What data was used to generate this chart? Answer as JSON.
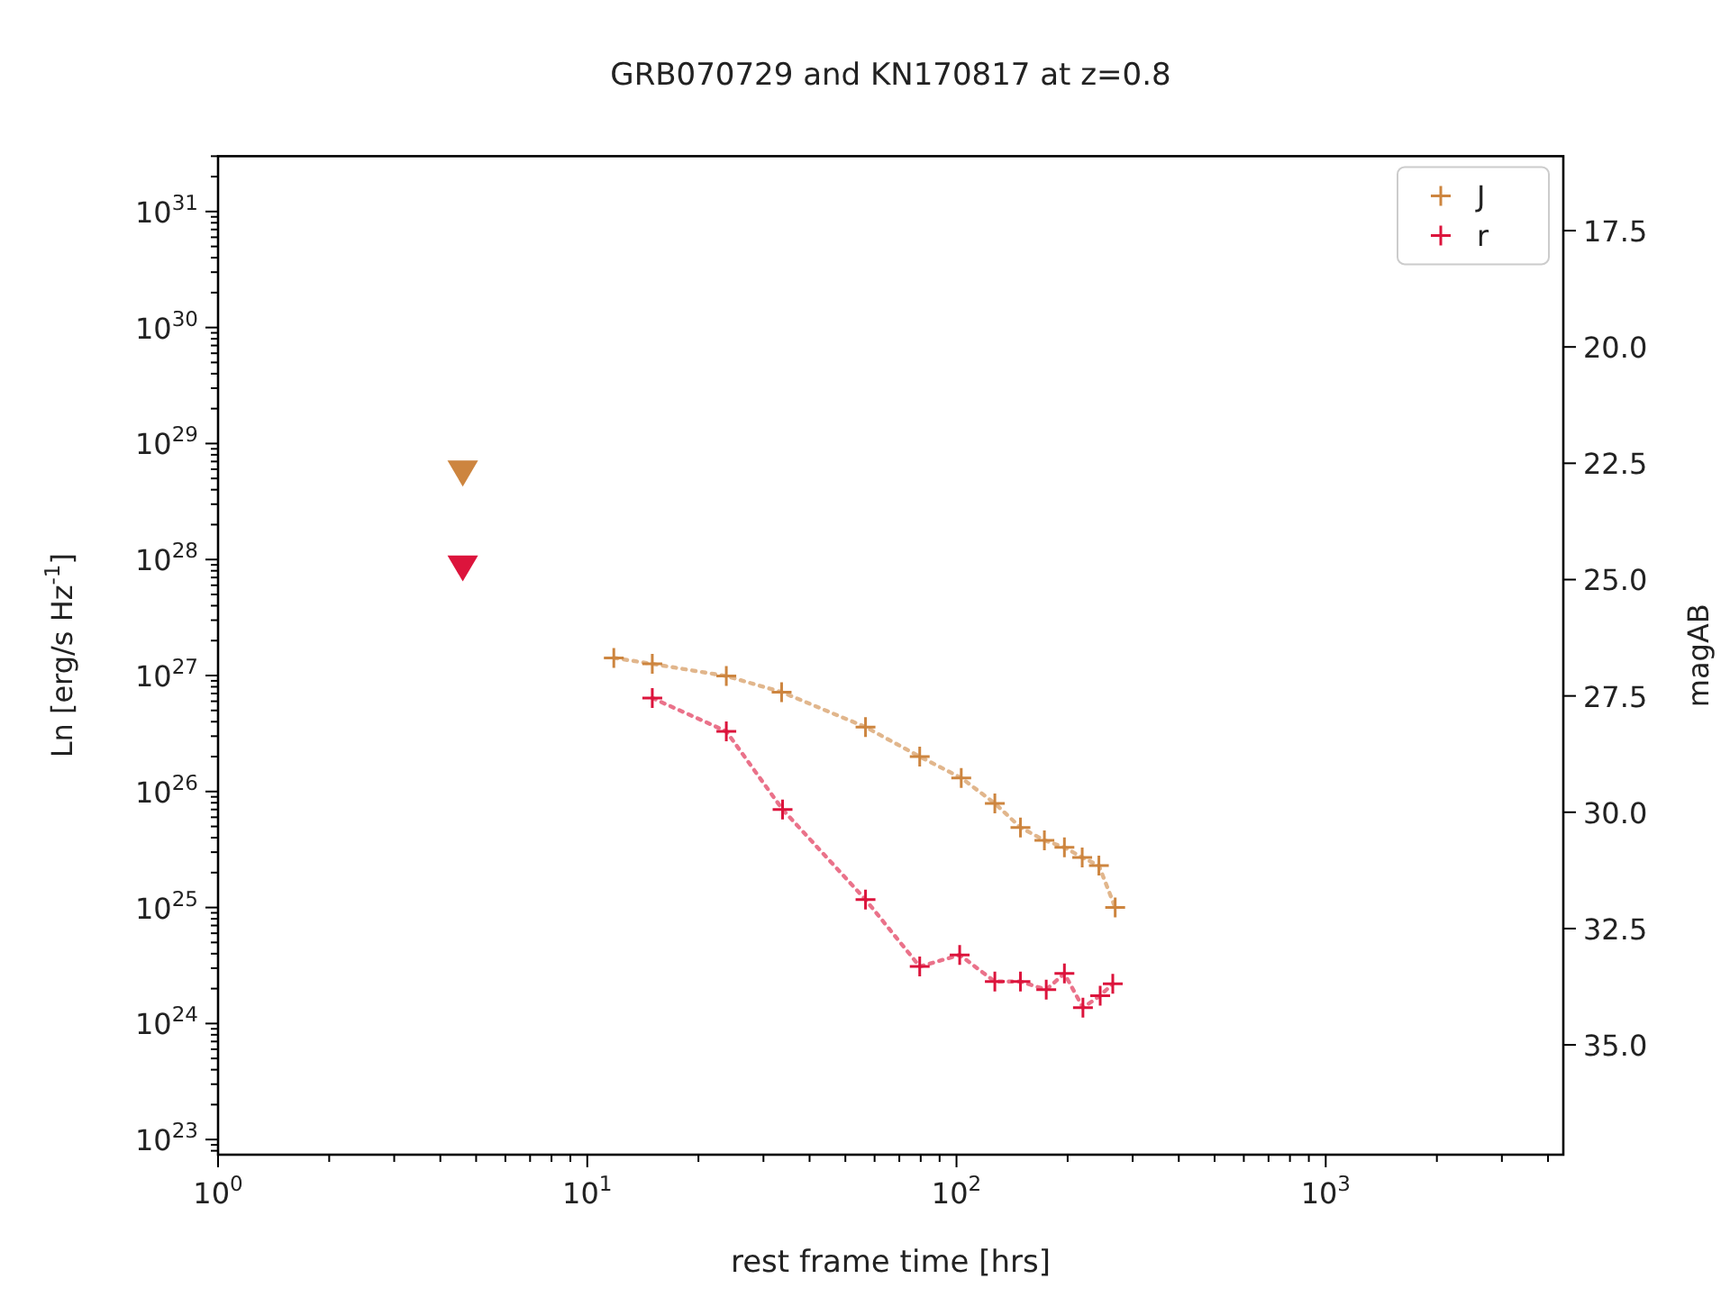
{
  "chart_data": {
    "type": "scatter",
    "title": "GRB070729 and KN170817 at z=0.8",
    "xlabel": "rest frame time [hrs]",
    "ylabel": "Ln [erg/s Hz$^{-1}$]",
    "y2label": "magAB",
    "log": "xy",
    "xlim": [
      1,
      4400
    ],
    "ylim": [
      7.4e+22,
      3e+31
    ],
    "y2lim": [
      37.36,
      15.9
    ],
    "xticks": [
      {
        "value": 1,
        "label": "10$^{0}$"
      },
      {
        "value": 10,
        "label": "10$^{1}$"
      },
      {
        "value": 100,
        "label": "10$^{2}$"
      },
      {
        "value": 1000,
        "label": "10$^{3}$"
      }
    ],
    "yticks": [
      {
        "value": 1e+23,
        "label": "10$^{23}$"
      },
      {
        "value": 1e+24,
        "label": "10$^{24}$"
      },
      {
        "value": 1e+25,
        "label": "10$^{25}$"
      },
      {
        "value": 1e+26,
        "label": "10$^{26}$"
      },
      {
        "value": 1e+27,
        "label": "10$^{27}$"
      },
      {
        "value": 1e+28,
        "label": "10$^{28}$"
      },
      {
        "value": 1e+29,
        "label": "10$^{29}$"
      },
      {
        "value": 1e+30,
        "label": "10$^{30}$"
      },
      {
        "value": 1e+31,
        "label": "10$^{31}$"
      }
    ],
    "y2ticks": [
      {
        "value": 17.5,
        "label": "17.5"
      },
      {
        "value": 20,
        "label": "20.0"
      },
      {
        "value": 22.5,
        "label": "22.5"
      },
      {
        "value": 25,
        "label": "25.0"
      },
      {
        "value": 27.5,
        "label": "27.5"
      },
      {
        "value": 30,
        "label": "30.0"
      },
      {
        "value": 32.5,
        "label": "32.5"
      },
      {
        "value": 35,
        "label": "35.0"
      }
    ],
    "legend": "top right",
    "series": [
      {
        "marker": "triangle",
        "color": "#cd853f",
        "x": [
          4.6
        ],
        "values": [
          5.6e+28
        ]
      },
      {
        "marker": "triangle",
        "color": "#dc143c",
        "x": [
          4.6
        ],
        "values": [
          8.5e+27
        ]
      },
      {
        "name": "J",
        "type": "line",
        "marker": "cross",
        "line_style": "dotted",
        "color": "#cd853f",
        "x": [
          11.8,
          15.0,
          23.8,
          33.6,
          56.7,
          79.5,
          103,
          127,
          149,
          173,
          196,
          219,
          243,
          269
        ],
        "values": [
          1.42e+27,
          1.26e+27,
          9.9e+26,
          7.2e+26,
          3.6e+26,
          2e+26,
          1.31e+26,
          7.9e+25,
          4.9e+25,
          3.8e+25,
          3.3e+25,
          2.7e+25,
          2.3e+25,
          1e+25
        ]
      },
      {
        "name": "r",
        "type": "line",
        "marker": "cross",
        "line_style": "dotted",
        "color": "#dc143c",
        "x": [
          15.0,
          23.8,
          33.8,
          56.7,
          79.5,
          102,
          127,
          149,
          175,
          196,
          220,
          245,
          265
        ],
        "values": [
          6.4e+26,
          3.3e+26,
          7e+25,
          1.17e+25,
          3.1e+24,
          3.9e+24,
          2.3e+24,
          2.3e+24,
          1.96e+24,
          2.7e+24,
          1.37e+24,
          1.74e+24,
          2.2e+24
        ]
      }
    ]
  }
}
